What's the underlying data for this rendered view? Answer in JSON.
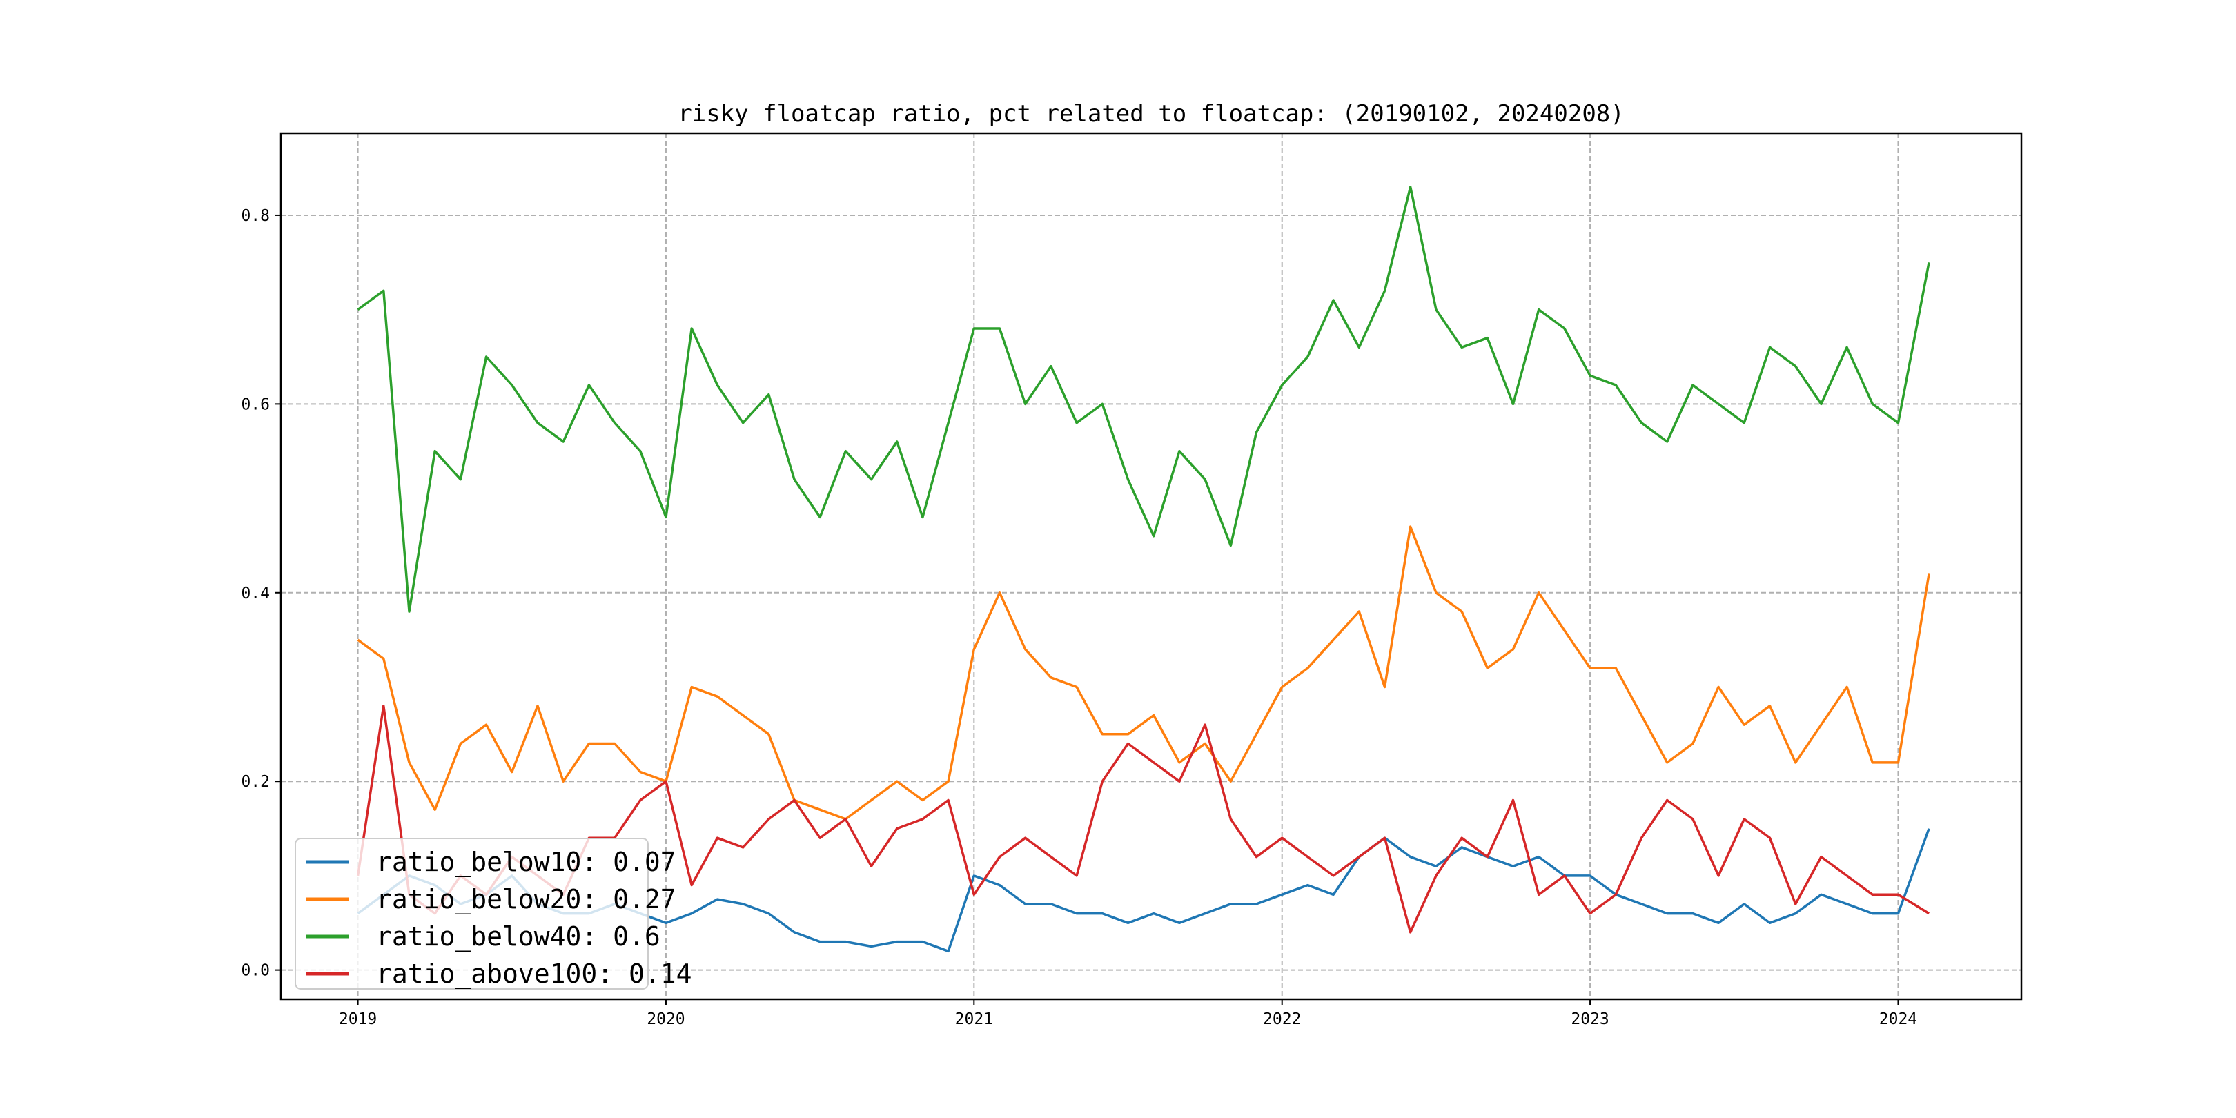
{
  "chart_data": {
    "type": "line",
    "title": "risky floatcap ratio, pct related to floatcap: (20190102, 20240208)",
    "xlabel": "",
    "ylabel": "",
    "xlim": [
      2018.75,
      2024.4
    ],
    "ylim": [
      -0.031,
      0.887
    ],
    "grid": true,
    "legend_position": "bottom-left",
    "xticks": [
      "2019",
      "2020",
      "2021",
      "2022",
      "2023",
      "2024"
    ],
    "yticks": [
      "0.0",
      "0.2",
      "0.4",
      "0.6",
      "0.8"
    ],
    "x": [
      "2019-01",
      "2019-02",
      "2019-03",
      "2019-04",
      "2019-05",
      "2019-06",
      "2019-07",
      "2019-08",
      "2019-09",
      "2019-10",
      "2019-11",
      "2019-12",
      "2020-01",
      "2020-02",
      "2020-03",
      "2020-04",
      "2020-05",
      "2020-06",
      "2020-07",
      "2020-08",
      "2020-09",
      "2020-10",
      "2020-11",
      "2020-12",
      "2021-01",
      "2021-02",
      "2021-03",
      "2021-04",
      "2021-05",
      "2021-06",
      "2021-07",
      "2021-08",
      "2021-09",
      "2021-10",
      "2021-11",
      "2021-12",
      "2022-01",
      "2022-02",
      "2022-03",
      "2022-04",
      "2022-05",
      "2022-06",
      "2022-07",
      "2022-08",
      "2022-09",
      "2022-10",
      "2022-11",
      "2022-12",
      "2023-01",
      "2023-02",
      "2023-03",
      "2023-04",
      "2023-05",
      "2023-06",
      "2023-07",
      "2023-08",
      "2023-09",
      "2023-10",
      "2023-11",
      "2023-12",
      "2024-01",
      "2024-02"
    ],
    "series": [
      {
        "name": "ratio_below10",
        "legend": "ratio_below10: 0.07",
        "color": "#1f77b4",
        "values": [
          0.06,
          0.08,
          0.1,
          0.09,
          0.07,
          0.08,
          0.1,
          0.07,
          0.06,
          0.06,
          0.07,
          0.06,
          0.05,
          0.06,
          0.075,
          0.07,
          0.06,
          0.04,
          0.03,
          0.03,
          0.025,
          0.03,
          0.03,
          0.02,
          0.1,
          0.09,
          0.07,
          0.07,
          0.06,
          0.06,
          0.05,
          0.06,
          0.05,
          0.06,
          0.07,
          0.07,
          0.08,
          0.09,
          0.08,
          0.12,
          0.14,
          0.12,
          0.11,
          0.13,
          0.12,
          0.11,
          0.12,
          0.1,
          0.1,
          0.08,
          0.07,
          0.06,
          0.06,
          0.05,
          0.07,
          0.05,
          0.06,
          0.08,
          0.07,
          0.06,
          0.06,
          0.15
        ]
      },
      {
        "name": "ratio_below20",
        "legend": "ratio_below20: 0.27",
        "color": "#ff7f0e",
        "values": [
          0.35,
          0.33,
          0.22,
          0.17,
          0.24,
          0.26,
          0.21,
          0.28,
          0.2,
          0.24,
          0.24,
          0.21,
          0.2,
          0.3,
          0.29,
          0.27,
          0.25,
          0.18,
          0.17,
          0.16,
          0.18,
          0.2,
          0.18,
          0.2,
          0.34,
          0.4,
          0.34,
          0.31,
          0.3,
          0.25,
          0.25,
          0.27,
          0.22,
          0.24,
          0.2,
          0.25,
          0.3,
          0.32,
          0.35,
          0.38,
          0.3,
          0.47,
          0.4,
          0.38,
          0.32,
          0.34,
          0.4,
          0.36,
          0.32,
          0.32,
          0.27,
          0.22,
          0.24,
          0.3,
          0.26,
          0.28,
          0.22,
          0.26,
          0.3,
          0.22,
          0.22,
          0.42
        ]
      },
      {
        "name": "ratio_below40",
        "legend": "ratio_below40: 0.6",
        "color": "#2ca02c",
        "values": [
          0.7,
          0.72,
          0.38,
          0.55,
          0.52,
          0.65,
          0.62,
          0.58,
          0.56,
          0.62,
          0.58,
          0.55,
          0.48,
          0.68,
          0.62,
          0.58,
          0.61,
          0.52,
          0.48,
          0.55,
          0.52,
          0.56,
          0.48,
          0.58,
          0.68,
          0.68,
          0.6,
          0.64,
          0.58,
          0.6,
          0.52,
          0.46,
          0.55,
          0.52,
          0.45,
          0.57,
          0.62,
          0.65,
          0.71,
          0.66,
          0.72,
          0.83,
          0.7,
          0.66,
          0.67,
          0.6,
          0.7,
          0.68,
          0.63,
          0.62,
          0.58,
          0.56,
          0.62,
          0.6,
          0.58,
          0.66,
          0.64,
          0.6,
          0.66,
          0.6,
          0.58,
          0.75
        ]
      },
      {
        "name": "ratio_above100",
        "legend": "ratio_above100: 0.14",
        "color": "#d62728",
        "values": [
          0.1,
          0.28,
          0.08,
          0.06,
          0.1,
          0.08,
          0.12,
          0.1,
          0.08,
          0.14,
          0.14,
          0.18,
          0.2,
          0.09,
          0.14,
          0.13,
          0.16,
          0.18,
          0.14,
          0.16,
          0.11,
          0.15,
          0.16,
          0.18,
          0.08,
          0.12,
          0.14,
          0.12,
          0.1,
          0.2,
          0.24,
          0.22,
          0.2,
          0.26,
          0.16,
          0.12,
          0.14,
          0.12,
          0.1,
          0.12,
          0.14,
          0.04,
          0.1,
          0.14,
          0.12,
          0.18,
          0.08,
          0.1,
          0.06,
          0.08,
          0.14,
          0.18,
          0.16,
          0.1,
          0.16,
          0.14,
          0.07,
          0.12,
          0.1,
          0.08,
          0.08,
          0.06
        ]
      }
    ]
  }
}
